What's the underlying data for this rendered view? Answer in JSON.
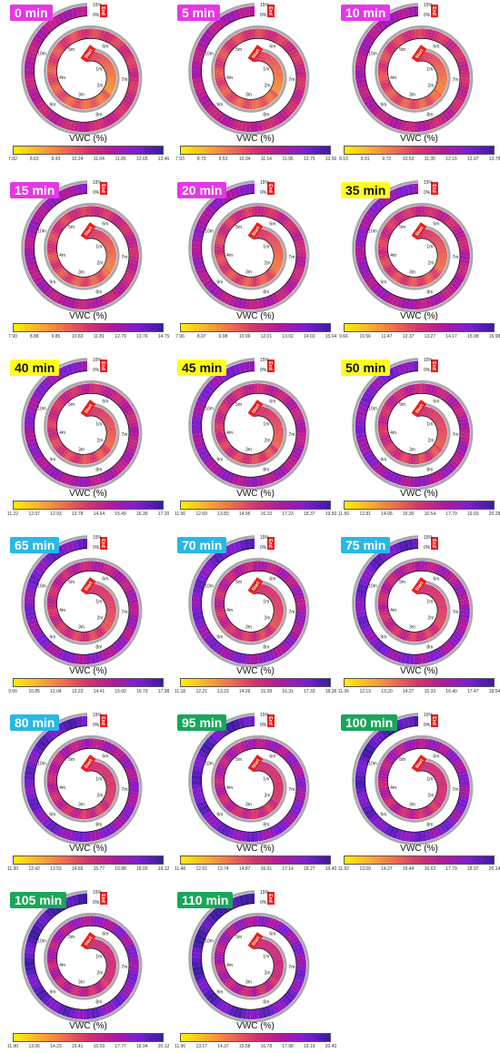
{
  "colorbar_label": "VWC (%)",
  "colors": {
    "track_gray": "#a9a9a9",
    "badge_magenta": "#e637e6",
    "badge_yellow": "#ffff1e",
    "badge_cyan": "#27b8e6",
    "badge_green": "#1aa65a",
    "marker_red": "#e8211f",
    "colormap": [
      "#fff000",
      "#f9b12d",
      "#ef6f4f",
      "#d4336e",
      "#b0199d",
      "#7c1ed3",
      "#3c1ba0"
    ]
  },
  "spiral_labels": {
    "start": "Start",
    "end": "End",
    "scale_high": "15%",
    "scale_zero": "0%",
    "distances": [
      "1m",
      "2m",
      "3m",
      "4m",
      "5m",
      "6m",
      "7m",
      "8m",
      "9m",
      "10m"
    ]
  },
  "chart_data": [
    {
      "type": "heatmap",
      "time_label": "0 min",
      "badge": "magenta",
      "colorbar_ticks": [
        "7.82",
        "8.63",
        "9.43",
        "10.24",
        "11.04",
        "11.85",
        "12.65",
        "13.46"
      ]
    },
    {
      "type": "heatmap",
      "time_label": "5 min",
      "badge": "magenta",
      "colorbar_ticks": [
        "7.93",
        "8.73",
        "9.53",
        "10.34",
        "11.14",
        "11.95",
        "12.75",
        "13.56"
      ]
    },
    {
      "type": "heatmap",
      "time_label": "10 min",
      "badge": "magenta",
      "colorbar_ticks": [
        "8.10",
        "8.91",
        "9.72",
        "10.53",
        "11.35",
        "12.16",
        "12.97",
        "13.78"
      ]
    },
    {
      "type": "heatmap",
      "time_label": "15 min",
      "badge": "magenta",
      "colorbar_ticks": [
        "7.90",
        "8.88",
        "9.85",
        "10.83",
        "11.81",
        "12.79",
        "13.76",
        "14.75"
      ]
    },
    {
      "type": "heatmap",
      "time_label": "20 min",
      "badge": "magenta",
      "colorbar_ticks": [
        "7.96",
        "8.97",
        "9.98",
        "10.99",
        "12.01",
        "13.02",
        "14.03",
        "15.04"
      ]
    },
    {
      "type": "heatmap",
      "time_label": "35 min",
      "badge": "yellow",
      "colorbar_ticks": [
        "9.66",
        "10.56",
        "11.47",
        "12.37",
        "13.27",
        "14.17",
        "15.08",
        "15.98"
      ]
    },
    {
      "type": "heatmap",
      "time_label": "40 min",
      "badge": "yellow",
      "colorbar_ticks": [
        "11.22",
        "12.07",
        "12.93",
        "13.78",
        "14.64",
        "15.49",
        "16.35",
        "17.20"
      ]
    },
    {
      "type": "heatmap",
      "time_label": "45 min",
      "badge": "yellow",
      "colorbar_ticks": [
        "11.56",
        "12.69",
        "13.83",
        "14.96",
        "16.10",
        "17.23",
        "18.37",
        "19.50"
      ]
    },
    {
      "type": "heatmap",
      "time_label": "50 min",
      "badge": "yellow",
      "colorbar_ticks": [
        "11.56",
        "12.81",
        "14.06",
        "15.30",
        "16.54",
        "17.79",
        "19.03",
        "20.28"
      ]
    },
    {
      "type": "heatmap",
      "time_label": "65 min",
      "badge": "cyan",
      "colorbar_ticks": [
        "9.66",
        "10.85",
        "12.04",
        "13.23",
        "14.41",
        "15.60",
        "16.79",
        "17.98"
      ]
    },
    {
      "type": "heatmap",
      "time_label": "70 min",
      "badge": "cyan",
      "colorbar_ticks": [
        "11.18",
        "12.21",
        "13.23",
        "14.26",
        "15.28",
        "16.31",
        "17.33",
        "18.36"
      ]
    },
    {
      "type": "heatmap",
      "time_label": "75 min",
      "badge": "cyan",
      "colorbar_ticks": [
        "11.06",
        "12.13",
        "13.20",
        "14.27",
        "15.33",
        "16.40",
        "17.47",
        "18.54"
      ]
    },
    {
      "type": "heatmap",
      "time_label": "80 min",
      "badge": "cyan",
      "colorbar_ticks": [
        "11.30",
        "12.42",
        "13.53",
        "14.65",
        "15.77",
        "16.88",
        "18.00",
        "19.12"
      ]
    },
    {
      "type": "heatmap",
      "time_label": "95 min",
      "badge": "green",
      "colorbar_ticks": [
        "11.48",
        "12.61",
        "13.74",
        "14.87",
        "16.01",
        "17.14",
        "18.27",
        "19.40"
      ]
    },
    {
      "type": "heatmap",
      "time_label": "100 min",
      "badge": "green",
      "colorbar_ticks": [
        "11.92",
        "13.09",
        "14.27",
        "15.44",
        "16.62",
        "17.79",
        "18.97",
        "20.14"
      ]
    },
    {
      "type": "heatmap",
      "time_label": "105 min",
      "badge": "green",
      "colorbar_ticks": [
        "11.90",
        "13.06",
        "14.23",
        "15.41",
        "16.59",
        "17.77",
        "18.94",
        "20.12"
      ]
    },
    {
      "type": "heatmap",
      "time_label": "110 min",
      "badge": "green",
      "colorbar_ticks": [
        "11.96",
        "13.17",
        "14.37",
        "15.58",
        "16.78",
        "17.98",
        "19.19",
        "20.40"
      ]
    }
  ]
}
